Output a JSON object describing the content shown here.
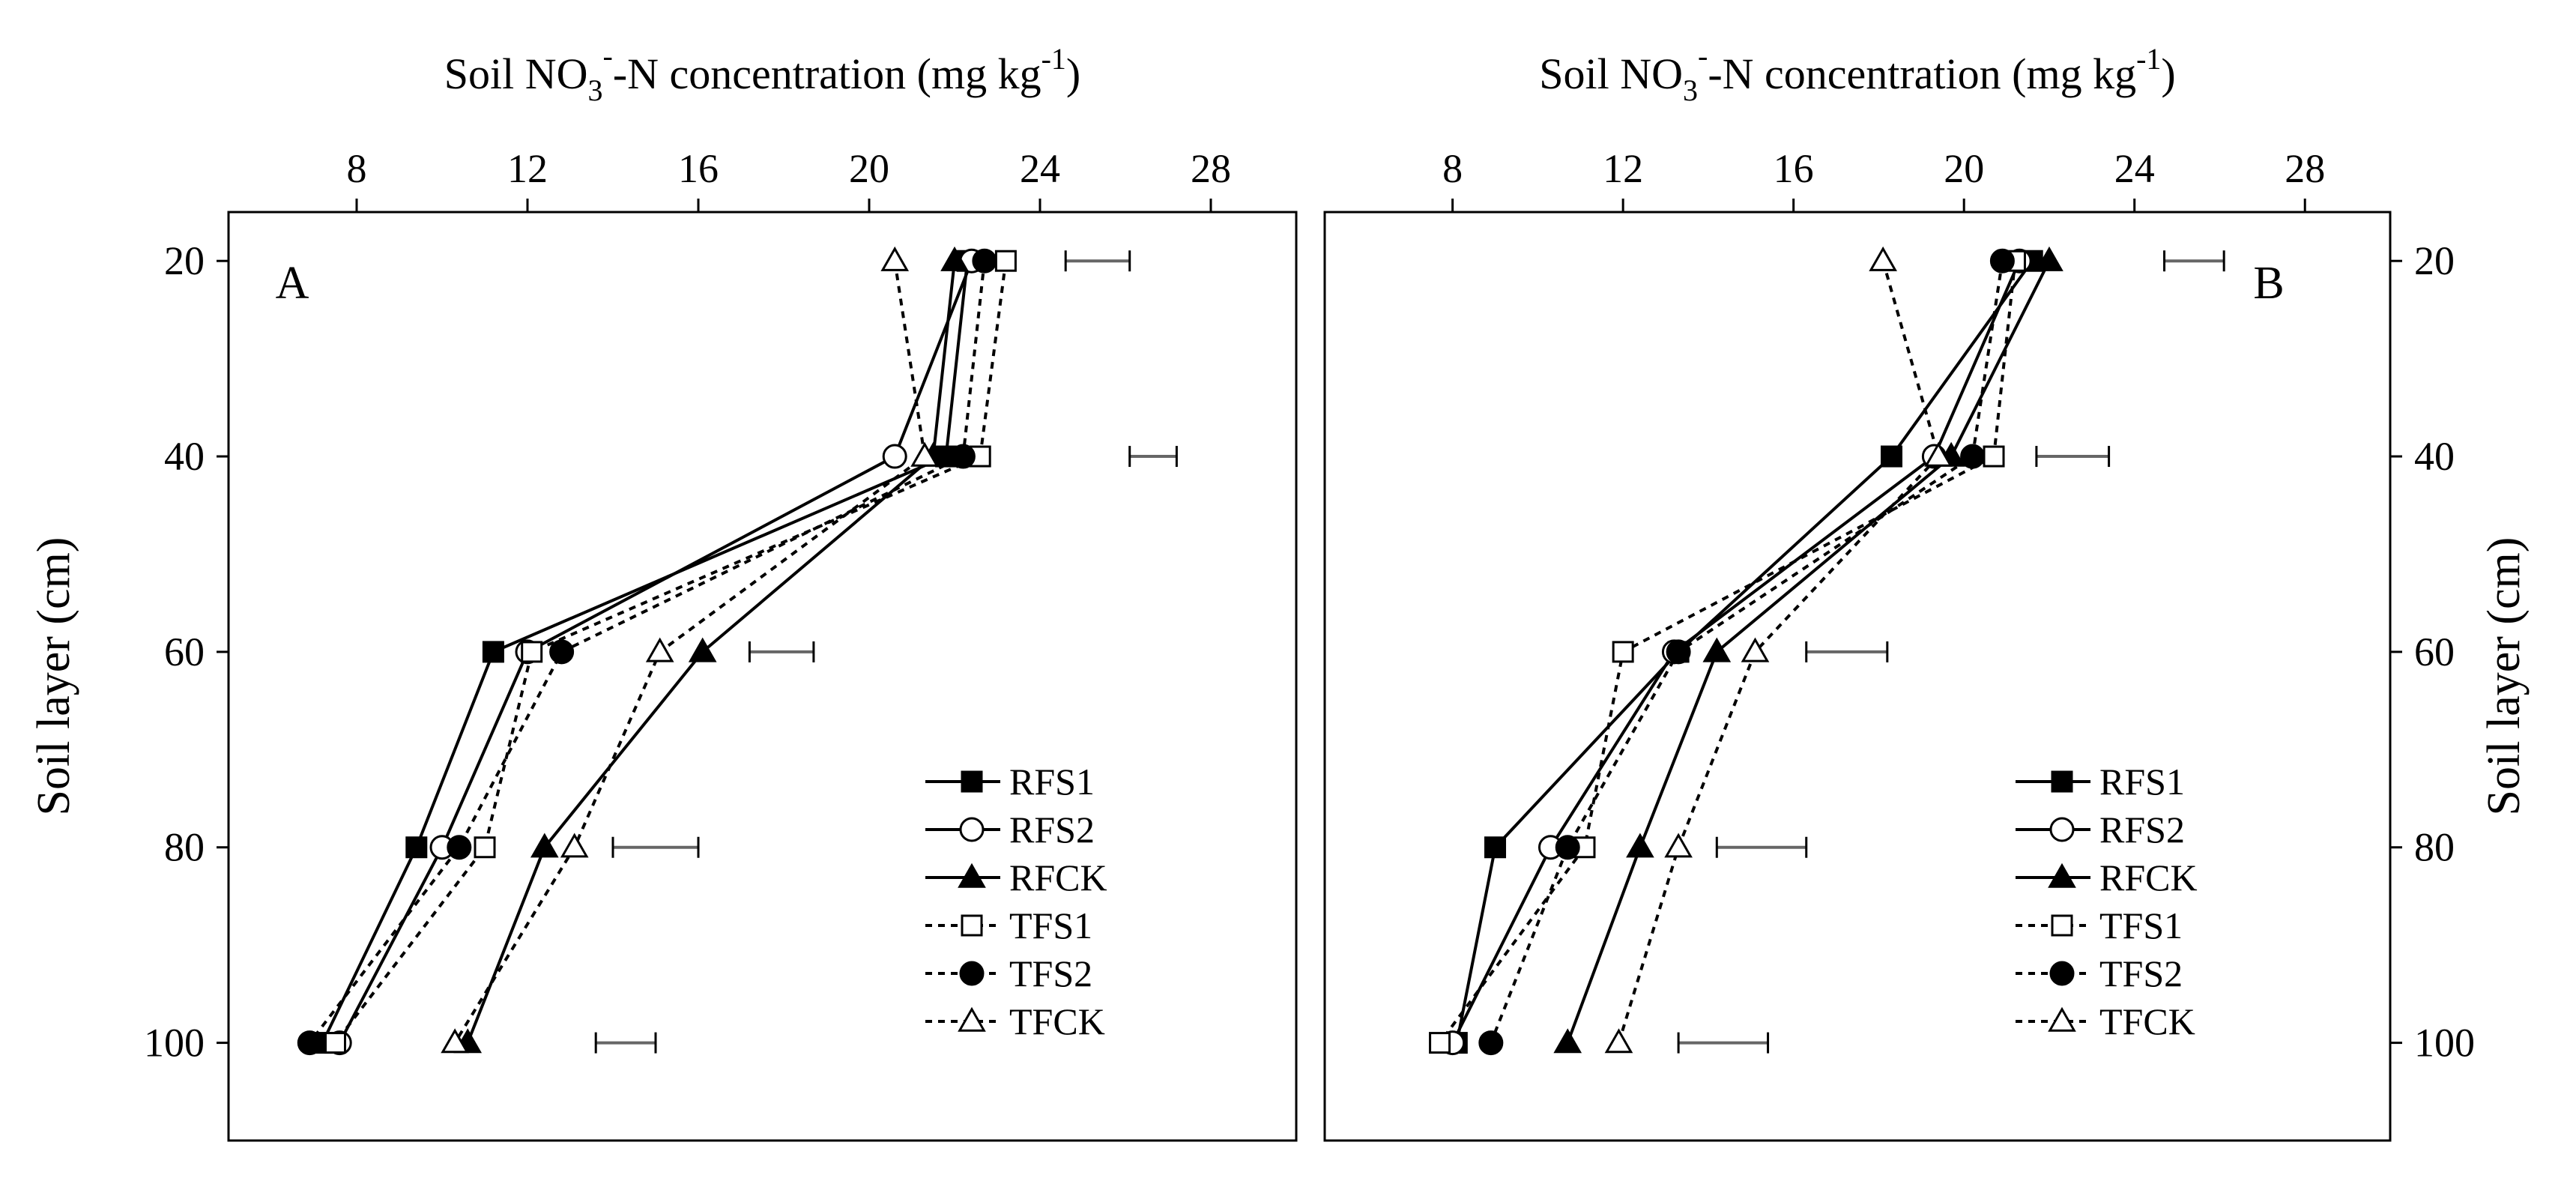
{
  "chart_data": [
    {
      "type": "line",
      "panel_label": "A",
      "title_parts": {
        "pre": "Soil NO",
        "sub": "3",
        "sup": "-",
        "mid": "-N concentration (mg kg",
        "sup2": "-1",
        "post": ")"
      },
      "xlabel": "Soil NO3⁻-N concentration (mg kg⁻¹)",
      "ylabel": "Soil layer (cm)",
      "xlim": [
        5,
        30
      ],
      "ylim": [
        110,
        15
      ],
      "xticks": [
        "8",
        "12",
        "16",
        "20",
        "24",
        "28"
      ],
      "yticks": [
        "20",
        "40",
        "60",
        "80",
        "100"
      ],
      "depths": [
        20,
        40,
        60,
        80,
        100
      ],
      "series": [
        {
          "name": "RFS1",
          "line": "solid",
          "marker": "square",
          "fill": "black",
          "values": [
            22.3,
            21.8,
            11.2,
            9.4,
            7.2
          ]
        },
        {
          "name": "RFS2",
          "line": "solid",
          "marker": "circle",
          "fill": "white",
          "values": [
            22.4,
            20.6,
            12.0,
            10.0,
            7.6
          ]
        },
        {
          "name": "RFCK",
          "line": "solid",
          "marker": "triangle",
          "fill": "black",
          "values": [
            22.0,
            21.5,
            16.1,
            12.4,
            10.6
          ]
        },
        {
          "name": "TFS1",
          "line": "dotted",
          "marker": "square",
          "fill": "white",
          "values": [
            23.2,
            22.6,
            12.1,
            11.0,
            7.5
          ]
        },
        {
          "name": "TFS2",
          "line": "dotted",
          "marker": "circle",
          "fill": "black",
          "values": [
            22.7,
            22.2,
            12.8,
            10.4,
            6.9
          ]
        },
        {
          "name": "TFCK",
          "line": "dotted",
          "marker": "triangle",
          "fill": "white",
          "values": [
            20.6,
            21.3,
            15.1,
            13.1,
            10.3
          ]
        }
      ],
      "error_bars": [
        {
          "depth": 20,
          "low": 24.6,
          "high": 26.1
        },
        {
          "depth": 40,
          "low": 26.1,
          "high": 27.2
        },
        {
          "depth": 60,
          "low": 17.2,
          "high": 18.7
        },
        {
          "depth": 80,
          "low": 14.0,
          "high": 16.0
        },
        {
          "depth": 100,
          "low": 13.6,
          "high": 15.0
        }
      ],
      "legend_position": "bottom-right",
      "ylabel_side": "left"
    },
    {
      "type": "line",
      "panel_label": "B",
      "title_parts": {
        "pre": "Soil NO",
        "sub": "3",
        "sup": "-",
        "mid": "-N concentration (mg kg",
        "sup2": "-1",
        "post": ")"
      },
      "xlabel": "Soil NO3⁻-N concentration (mg kg⁻¹)",
      "ylabel": "Soil layer (cm)",
      "xlim": [
        5,
        30
      ],
      "ylim": [
        110,
        15
      ],
      "xticks": [
        "8",
        "12",
        "16",
        "20",
        "24",
        "28"
      ],
      "yticks": [
        "20",
        "40",
        "60",
        "80",
        "100"
      ],
      "depths": [
        20,
        40,
        60,
        80,
        100
      ],
      "series": [
        {
          "name": "RFS1",
          "line": "solid",
          "marker": "square",
          "fill": "black",
          "values": [
            21.6,
            18.3,
            13.3,
            9.0,
            8.1
          ]
        },
        {
          "name": "RFS2",
          "line": "solid",
          "marker": "circle",
          "fill": "white",
          "values": [
            21.3,
            19.3,
            13.2,
            10.3,
            8.0
          ]
        },
        {
          "name": "RFCK",
          "line": "solid",
          "marker": "triangle",
          "fill": "black",
          "values": [
            22.0,
            19.7,
            14.2,
            12.4,
            10.7
          ]
        },
        {
          "name": "TFS1",
          "line": "dotted",
          "marker": "square",
          "fill": "white",
          "values": [
            21.2,
            20.7,
            12.0,
            11.1,
            7.7
          ]
        },
        {
          "name": "TFS2",
          "line": "dotted",
          "marker": "circle",
          "fill": "black",
          "values": [
            20.9,
            20.2,
            13.3,
            10.7,
            8.9
          ]
        },
        {
          "name": "TFCK",
          "line": "dotted",
          "marker": "triangle",
          "fill": "white",
          "values": [
            18.1,
            19.4,
            15.1,
            13.3,
            11.9
          ]
        }
      ],
      "error_bars": [
        {
          "depth": 20,
          "low": 24.7,
          "high": 26.1
        },
        {
          "depth": 40,
          "low": 21.7,
          "high": 23.4
        },
        {
          "depth": 60,
          "low": 16.3,
          "high": 18.2
        },
        {
          "depth": 80,
          "low": 14.2,
          "high": 16.3
        },
        {
          "depth": 100,
          "low": 13.3,
          "high": 15.4
        }
      ],
      "legend_position": "bottom-right",
      "ylabel_side": "right"
    }
  ]
}
